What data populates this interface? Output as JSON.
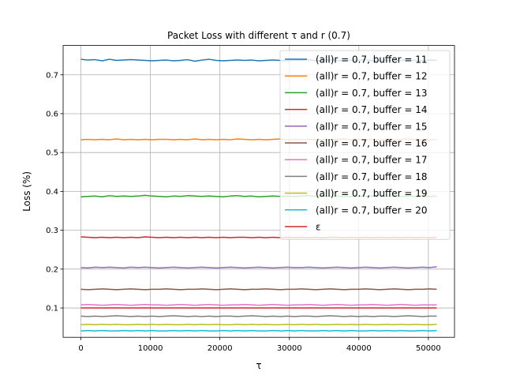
{
  "chart_data": {
    "type": "line",
    "title": "Packet Loss with different τ and r (0.7)",
    "xlabel": "τ",
    "ylabel": "Loss (%)",
    "xlim": [
      -2560,
      53760
    ],
    "ylim": [
      0.0245,
      0.7755
    ],
    "xticks": [
      0,
      10000,
      20000,
      30000,
      40000,
      50000
    ],
    "yticks": [
      0.1,
      0.2,
      0.3,
      0.4,
      0.5,
      0.6,
      0.7
    ],
    "grid": true,
    "legend_position": "top-right",
    "x_range": [
      0,
      51200
    ],
    "series": [
      {
        "name": "(all)r = 0.7, buffer = 11",
        "color": "#1f77b4",
        "values": [
          0.74,
          0.738,
          0.739,
          0.736,
          0.74,
          0.737,
          0.738,
          0.739,
          0.738,
          0.737,
          0.736,
          0.737,
          0.738,
          0.736,
          0.737,
          0.739,
          0.735,
          0.738,
          0.74,
          0.737,
          0.736,
          0.737,
          0.738,
          0.737,
          0.738,
          0.736,
          0.737,
          0.738,
          0.737,
          0.736,
          0.738,
          0.737,
          0.739,
          0.736,
          0.737,
          0.738,
          0.737,
          0.736,
          0.738,
          0.737,
          0.739,
          0.736,
          0.737,
          0.738,
          0.736,
          0.737,
          0.738,
          0.737,
          0.736,
          0.738,
          0.737
        ]
      },
      {
        "name": "(all)r = 0.7, buffer = 12",
        "color": "#ff7f0e",
        "values": [
          0.533,
          0.534,
          0.533,
          0.534,
          0.533,
          0.535,
          0.533,
          0.534,
          0.533,
          0.534,
          0.533,
          0.534,
          0.534,
          0.533,
          0.534,
          0.533,
          0.535,
          0.533,
          0.534,
          0.533,
          0.534,
          0.533,
          0.535,
          0.534,
          0.533,
          0.534,
          0.533,
          0.534,
          0.535,
          0.533,
          0.534,
          0.533,
          0.534,
          0.533,
          0.534,
          0.533,
          0.534,
          0.535,
          0.533,
          0.534,
          0.533,
          0.534,
          0.533,
          0.534,
          0.533,
          0.534,
          0.535,
          0.533,
          0.534,
          0.533,
          0.534
        ]
      },
      {
        "name": "(all)r = 0.7, buffer = 13",
        "color": "#2ca02c",
        "values": [
          0.386,
          0.387,
          0.388,
          0.386,
          0.389,
          0.387,
          0.388,
          0.387,
          0.388,
          0.39,
          0.388,
          0.387,
          0.386,
          0.388,
          0.387,
          0.389,
          0.388,
          0.387,
          0.388,
          0.387,
          0.386,
          0.388,
          0.389,
          0.387,
          0.388,
          0.386,
          0.387,
          0.388,
          0.387,
          0.388,
          0.387,
          0.388,
          0.389,
          0.387,
          0.388,
          0.387,
          0.388,
          0.386,
          0.387,
          0.388,
          0.387,
          0.388,
          0.389,
          0.387,
          0.388,
          0.387,
          0.388,
          0.387,
          0.388,
          0.387,
          0.388
        ]
      },
      {
        "name": "(all)r = 0.7, buffer = 14",
        "color": "#d62728",
        "values": [
          0.283,
          0.282,
          0.281,
          0.282,
          0.281,
          0.282,
          0.281,
          0.282,
          0.281,
          0.283,
          0.282,
          0.281,
          0.282,
          0.281,
          0.282,
          0.281,
          0.282,
          0.281,
          0.282,
          0.281,
          0.282,
          0.281,
          0.282,
          0.282,
          0.281,
          0.282,
          0.281,
          0.282,
          0.281,
          0.282,
          0.281,
          0.282,
          0.281,
          0.282,
          0.281,
          0.282,
          0.282,
          0.281,
          0.282,
          0.281,
          0.282,
          0.281,
          0.282,
          0.281,
          0.282,
          0.281,
          0.282,
          0.281,
          0.282,
          0.281,
          0.282
        ]
      },
      {
        "name": "(all)r = 0.7, buffer = 15",
        "color": "#9467bd",
        "values": [
          0.204,
          0.203,
          0.205,
          0.204,
          0.205,
          0.204,
          0.203,
          0.205,
          0.204,
          0.205,
          0.204,
          0.203,
          0.204,
          0.205,
          0.204,
          0.203,
          0.204,
          0.205,
          0.204,
          0.203,
          0.204,
          0.205,
          0.204,
          0.203,
          0.204,
          0.205,
          0.204,
          0.203,
          0.204,
          0.205,
          0.204,
          0.204,
          0.205,
          0.204,
          0.203,
          0.204,
          0.205,
          0.204,
          0.203,
          0.204,
          0.205,
          0.204,
          0.203,
          0.204,
          0.205,
          0.204,
          0.203,
          0.204,
          0.205,
          0.204,
          0.206
        ]
      },
      {
        "name": "(all)r = 0.7, buffer = 16",
        "color": "#8c564b",
        "values": [
          0.148,
          0.147,
          0.148,
          0.149,
          0.148,
          0.147,
          0.148,
          0.149,
          0.148,
          0.147,
          0.148,
          0.148,
          0.149,
          0.148,
          0.147,
          0.148,
          0.148,
          0.149,
          0.148,
          0.147,
          0.148,
          0.149,
          0.148,
          0.147,
          0.148,
          0.148,
          0.149,
          0.148,
          0.147,
          0.148,
          0.148,
          0.149,
          0.148,
          0.147,
          0.148,
          0.149,
          0.148,
          0.147,
          0.148,
          0.148,
          0.149,
          0.148,
          0.147,
          0.148,
          0.149,
          0.148,
          0.147,
          0.148,
          0.148,
          0.149,
          0.148
        ]
      },
      {
        "name": "(all)r = 0.7, buffer = 17",
        "color": "#e377c2",
        "values": [
          0.108,
          0.109,
          0.108,
          0.107,
          0.108,
          0.109,
          0.108,
          0.107,
          0.108,
          0.109,
          0.108,
          0.108,
          0.107,
          0.108,
          0.109,
          0.108,
          0.107,
          0.108,
          0.109,
          0.108,
          0.107,
          0.108,
          0.108,
          0.109,
          0.108,
          0.107,
          0.108,
          0.109,
          0.108,
          0.107,
          0.108,
          0.108,
          0.109,
          0.108,
          0.107,
          0.108,
          0.109,
          0.108,
          0.107,
          0.108,
          0.108,
          0.109,
          0.108,
          0.107,
          0.108,
          0.109,
          0.108,
          0.107,
          0.108,
          0.108,
          0.108
        ]
      },
      {
        "name": "(all)r = 0.7, buffer = 18",
        "color": "#7f7f7f",
        "values": [
          0.079,
          0.078,
          0.079,
          0.078,
          0.079,
          0.08,
          0.079,
          0.078,
          0.079,
          0.078,
          0.079,
          0.078,
          0.079,
          0.08,
          0.079,
          0.078,
          0.079,
          0.078,
          0.079,
          0.078,
          0.079,
          0.079,
          0.078,
          0.079,
          0.08,
          0.079,
          0.078,
          0.079,
          0.078,
          0.079,
          0.078,
          0.079,
          0.079,
          0.078,
          0.079,
          0.08,
          0.079,
          0.078,
          0.079,
          0.078,
          0.079,
          0.078,
          0.079,
          0.079,
          0.078,
          0.079,
          0.08,
          0.079,
          0.078,
          0.079,
          0.079
        ]
      },
      {
        "name": "(all)r = 0.7, buffer = 19",
        "color": "#bcbd22",
        "values": [
          0.057,
          0.058,
          0.057,
          0.058,
          0.057,
          0.058,
          0.057,
          0.057,
          0.058,
          0.057,
          0.058,
          0.057,
          0.058,
          0.057,
          0.057,
          0.058,
          0.057,
          0.058,
          0.057,
          0.058,
          0.057,
          0.057,
          0.058,
          0.057,
          0.058,
          0.057,
          0.058,
          0.057,
          0.057,
          0.058,
          0.057,
          0.058,
          0.057,
          0.058,
          0.057,
          0.057,
          0.058,
          0.057,
          0.058,
          0.057,
          0.058,
          0.057,
          0.057,
          0.058,
          0.057,
          0.058,
          0.057,
          0.058,
          0.057,
          0.057,
          0.058
        ]
      },
      {
        "name": "(all)r = 0.7, buffer = 20",
        "color": "#17becf",
        "values": [
          0.041,
          0.042,
          0.041,
          0.042,
          0.041,
          0.041,
          0.042,
          0.041,
          0.042,
          0.041,
          0.042,
          0.041,
          0.041,
          0.042,
          0.041,
          0.042,
          0.041,
          0.042,
          0.041,
          0.041,
          0.042,
          0.041,
          0.042,
          0.041,
          0.042,
          0.041,
          0.041,
          0.042,
          0.041,
          0.042,
          0.041,
          0.042,
          0.041,
          0.041,
          0.042,
          0.041,
          0.042,
          0.041,
          0.042,
          0.041,
          0.041,
          0.042,
          0.041,
          0.042,
          0.041,
          0.042,
          0.041,
          0.041,
          0.042,
          0.041,
          0.042
        ]
      },
      {
        "name": "ε",
        "color": "#d62728",
        "values": [
          0.1,
          0.1,
          0.1,
          0.1,
          0.1,
          0.1,
          0.1,
          0.1,
          0.1,
          0.1,
          0.1,
          0.1,
          0.1,
          0.1,
          0.1,
          0.1,
          0.1,
          0.1,
          0.1,
          0.1,
          0.1,
          0.1,
          0.1,
          0.1,
          0.1,
          0.1,
          0.1,
          0.1,
          0.1,
          0.1,
          0.1,
          0.1,
          0.1,
          0.1,
          0.1,
          0.1,
          0.1,
          0.1,
          0.1,
          0.1,
          0.1,
          0.1,
          0.1,
          0.1,
          0.1,
          0.1,
          0.1,
          0.1,
          0.1,
          0.1,
          0.1
        ]
      }
    ]
  }
}
